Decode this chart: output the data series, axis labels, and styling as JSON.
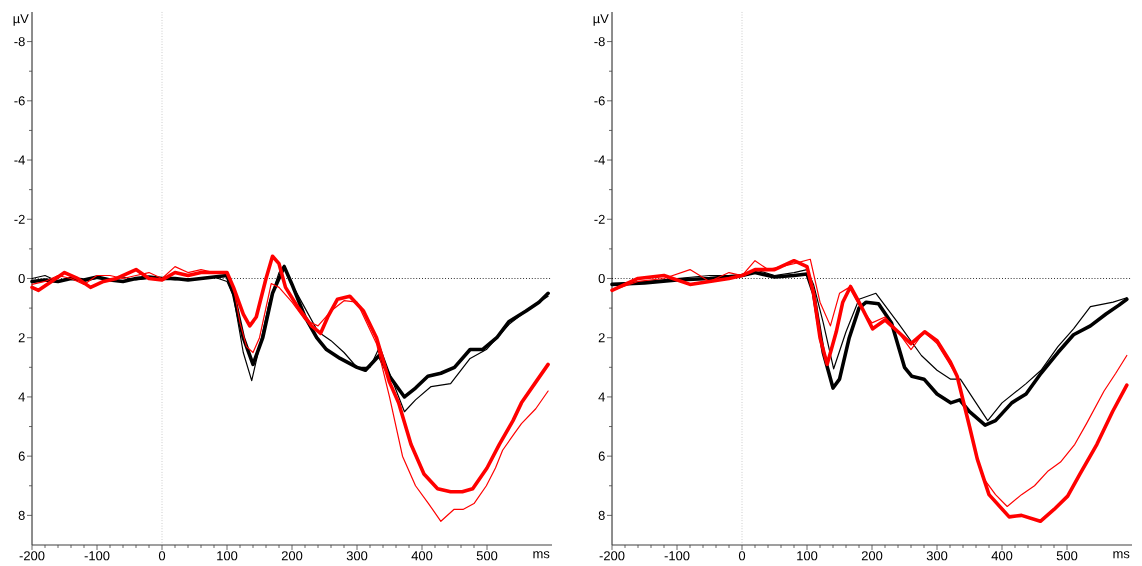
{
  "chart_data": [
    {
      "type": "line",
      "xlabel": "ms",
      "ylabel": "µV",
      "xlim": [
        -200,
        600
      ],
      "ylim": [
        9,
        -9
      ],
      "xticks": [
        -200,
        -100,
        0,
        100,
        200,
        300,
        400,
        500
      ],
      "yticks": [
        -8,
        -6,
        -4,
        -2,
        0,
        2,
        4,
        6,
        8
      ],
      "marker": "none",
      "line_style": "solid",
      "ref_lines": [
        {
          "axis": "x",
          "value": 0,
          "color": "#999999",
          "line_style": "dotted"
        },
        {
          "axis": "y",
          "value": 0,
          "color": "#000000",
          "line_style": "dotted"
        }
      ],
      "series": [
        {
          "color": "#000000",
          "x": [
            -200,
            -180,
            -160,
            -140,
            -120,
            -100,
            -80,
            -60,
            -40,
            -20,
            0,
            20,
            40,
            60,
            80,
            100,
            110,
            125,
            138,
            150,
            165,
            180,
            188,
            200,
            220,
            240,
            260,
            280,
            300,
            320,
            335,
            350,
            373,
            390,
            414,
            444,
            474,
            499,
            534,
            560,
            580,
            594
          ],
          "values": [
            0.0,
            -0.1,
            0.1,
            0.0,
            0.1,
            0.0,
            0.05,
            -0.05,
            0.05,
            0.0,
            0.0,
            0.05,
            0.0,
            0.0,
            -0.05,
            0.1,
            0.6,
            2.5,
            3.45,
            2.3,
            0.8,
            -0.2,
            -0.45,
            0.2,
            1.0,
            1.8,
            2.1,
            2.5,
            3.0,
            3.0,
            2.3,
            3.2,
            4.5,
            4.1,
            3.65,
            3.55,
            2.7,
            2.4,
            1.55,
            1.1,
            0.8,
            0.6
          ]
        },
        {
          "color": "#000000",
          "x": [
            -200,
            -180,
            -160,
            -140,
            -120,
            -100,
            -80,
            -60,
            -40,
            -20,
            0,
            20,
            40,
            60,
            80,
            100,
            110,
            125,
            140,
            155,
            170,
            188,
            200,
            220,
            238,
            253,
            274,
            300,
            313,
            334,
            350,
            373,
            390,
            409,
            429,
            450,
            474,
            493,
            515,
            534,
            560,
            580,
            594
          ],
          "values": [
            0.1,
            0.05,
            0.1,
            0.0,
            0.05,
            -0.05,
            0.05,
            0.1,
            0.0,
            -0.05,
            0.0,
            0.0,
            0.05,
            0.0,
            -0.05,
            -0.1,
            0.5,
            2.0,
            2.9,
            2.0,
            0.5,
            -0.4,
            0.2,
            1.3,
            2.0,
            2.4,
            2.7,
            3.0,
            3.1,
            2.6,
            3.3,
            4.0,
            3.7,
            3.3,
            3.2,
            3.0,
            2.4,
            2.4,
            2.0,
            1.45,
            1.1,
            0.8,
            0.5
          ]
        },
        {
          "color": "#ff0000",
          "x": [
            -200,
            -180,
            -160,
            -140,
            -120,
            -100,
            -80,
            -60,
            -40,
            -20,
            0,
            20,
            40,
            60,
            80,
            100,
            110,
            120,
            130,
            140,
            150,
            168,
            180,
            200,
            220,
            240,
            260,
            280,
            300,
            330,
            350,
            370,
            390,
            410,
            429,
            449,
            463,
            480,
            499,
            513,
            524,
            540,
            553,
            575,
            594
          ],
          "values": [
            0.2,
            0.1,
            -0.1,
            0.0,
            0.2,
            -0.1,
            -0.1,
            0.0,
            -0.1,
            -0.2,
            0.0,
            -0.4,
            -0.2,
            -0.3,
            -0.2,
            -0.2,
            0.3,
            1.5,
            2.3,
            2.5,
            2.0,
            0.17,
            0.3,
            0.8,
            1.4,
            1.6,
            1.1,
            0.75,
            0.8,
            2.2,
            4.0,
            6.0,
            7.0,
            7.6,
            8.2,
            7.8,
            7.8,
            7.6,
            7.0,
            6.4,
            5.8,
            5.3,
            4.9,
            4.4,
            3.8
          ]
        },
        {
          "color": "#ff0000",
          "x": [
            -200,
            -190,
            -170,
            -150,
            -130,
            -110,
            -90,
            -70,
            -40,
            -20,
            0,
            20,
            40,
            60,
            80,
            100,
            110,
            125,
            135,
            145,
            160,
            170,
            180,
            190,
            210,
            230,
            244,
            255,
            270,
            289,
            310,
            330,
            350,
            364,
            383,
            403,
            424,
            444,
            462,
            478,
            500,
            519,
            540,
            553,
            575,
            594
          ],
          "values": [
            0.3,
            0.4,
            0.1,
            -0.2,
            0.0,
            0.3,
            0.1,
            0.0,
            -0.3,
            0.0,
            0.05,
            -0.2,
            -0.1,
            -0.2,
            -0.2,
            -0.2,
            0.3,
            1.2,
            1.6,
            1.3,
            0.0,
            -0.75,
            -0.5,
            0.3,
            1.0,
            1.6,
            1.85,
            1.3,
            0.7,
            0.6,
            1.1,
            2.0,
            3.5,
            4.2,
            5.6,
            6.6,
            7.1,
            7.2,
            7.2,
            7.1,
            6.4,
            5.6,
            4.8,
            4.2,
            3.5,
            2.9
          ]
        }
      ]
    },
    {
      "type": "line",
      "xlabel": "ms",
      "ylabel": "µV",
      "xlim": [
        -200,
        600
      ],
      "ylim": [
        9,
        -9
      ],
      "xticks": [
        -200,
        -100,
        0,
        100,
        200,
        300,
        400,
        500
      ],
      "yticks": [
        -8,
        -6,
        -4,
        -2,
        0,
        2,
        4,
        6,
        8
      ],
      "marker": "none",
      "line_style": "solid",
      "ref_lines": [
        {
          "axis": "x",
          "value": 0,
          "color": "#999999",
          "line_style": "dotted"
        },
        {
          "axis": "y",
          "value": 0,
          "color": "#000000",
          "line_style": "dotted"
        }
      ],
      "series": [
        {
          "color": "#000000",
          "x": [
            -200,
            -150,
            -100,
            -50,
            0,
            20,
            50,
            80,
            100,
            110,
            125,
            141,
            160,
            180,
            206,
            240,
            276,
            300,
            321,
            336,
            360,
            378,
            400,
            437,
            460,
            486,
            510,
            536,
            571,
            592
          ],
          "values": [
            0.2,
            0.1,
            0.0,
            -0.1,
            -0.1,
            -0.3,
            -0.1,
            -0.2,
            -0.3,
            0.2,
            1.5,
            3.05,
            1.8,
            0.7,
            0.5,
            1.5,
            2.6,
            3.1,
            3.4,
            3.4,
            4.2,
            4.8,
            4.2,
            3.55,
            3.1,
            2.3,
            1.7,
            0.95,
            0.8,
            0.65
          ]
        },
        {
          "color": "#000000",
          "x": [
            -200,
            -150,
            -100,
            -50,
            0,
            20,
            50,
            80,
            100,
            110,
            125,
            140,
            150,
            165,
            180,
            191,
            210,
            230,
            250,
            261,
            280,
            300,
            321,
            335,
            350,
            374,
            390,
            415,
            437,
            460,
            486,
            510,
            536,
            560,
            580,
            592
          ],
          "values": [
            0.2,
            0.15,
            0.05,
            0.0,
            -0.1,
            -0.2,
            -0.05,
            -0.1,
            -0.15,
            0.5,
            2.5,
            3.7,
            3.4,
            2.0,
            1.0,
            0.8,
            0.85,
            1.5,
            3.0,
            3.3,
            3.4,
            3.9,
            4.2,
            4.1,
            4.5,
            4.95,
            4.8,
            4.2,
            3.9,
            3.2,
            2.5,
            1.9,
            1.6,
            1.2,
            0.9,
            0.7
          ]
        },
        {
          "color": "#ff0000",
          "x": [
            -200,
            -160,
            -120,
            -80,
            -50,
            -20,
            0,
            20,
            40,
            60,
            80,
            105,
            120,
            136,
            150,
            165,
            180,
            200,
            220,
            240,
            260,
            280,
            300,
            331,
            350,
            370,
            390,
            408,
            430,
            450,
            471,
            490,
            512,
            530,
            557,
            575,
            592
          ],
          "values": [
            0.4,
            0.1,
            0.0,
            -0.3,
            0.1,
            -0.2,
            -0.1,
            -0.6,
            -0.3,
            -0.4,
            -0.5,
            -0.65,
            0.8,
            1.6,
            0.5,
            0.3,
            0.9,
            1.5,
            1.3,
            1.8,
            2.4,
            1.8,
            2.2,
            3.3,
            5.0,
            6.7,
            7.3,
            7.7,
            7.3,
            7.0,
            6.5,
            6.2,
            5.6,
            4.9,
            3.8,
            3.2,
            2.6
          ]
        },
        {
          "color": "#ff0000",
          "x": [
            -200,
            -160,
            -120,
            -80,
            -50,
            -20,
            0,
            20,
            50,
            80,
            100,
            110,
            120,
            131,
            145,
            155,
            167,
            180,
            201,
            220,
            240,
            260,
            281,
            300,
            320,
            331,
            350,
            362,
            380,
            411,
            430,
            459,
            480,
            501,
            520,
            546,
            570,
            592
          ],
          "values": [
            0.4,
            0.0,
            -0.1,
            0.2,
            0.1,
            0.0,
            -0.1,
            -0.3,
            -0.3,
            -0.6,
            -0.4,
            0.5,
            2.0,
            2.9,
            1.8,
            0.8,
            0.27,
            0.8,
            1.7,
            1.4,
            1.8,
            2.2,
            1.8,
            2.1,
            2.8,
            3.3,
            5.0,
            6.1,
            7.3,
            8.05,
            8.0,
            8.2,
            7.8,
            7.35,
            6.6,
            5.6,
            4.5,
            3.6
          ]
        }
      ]
    }
  ]
}
